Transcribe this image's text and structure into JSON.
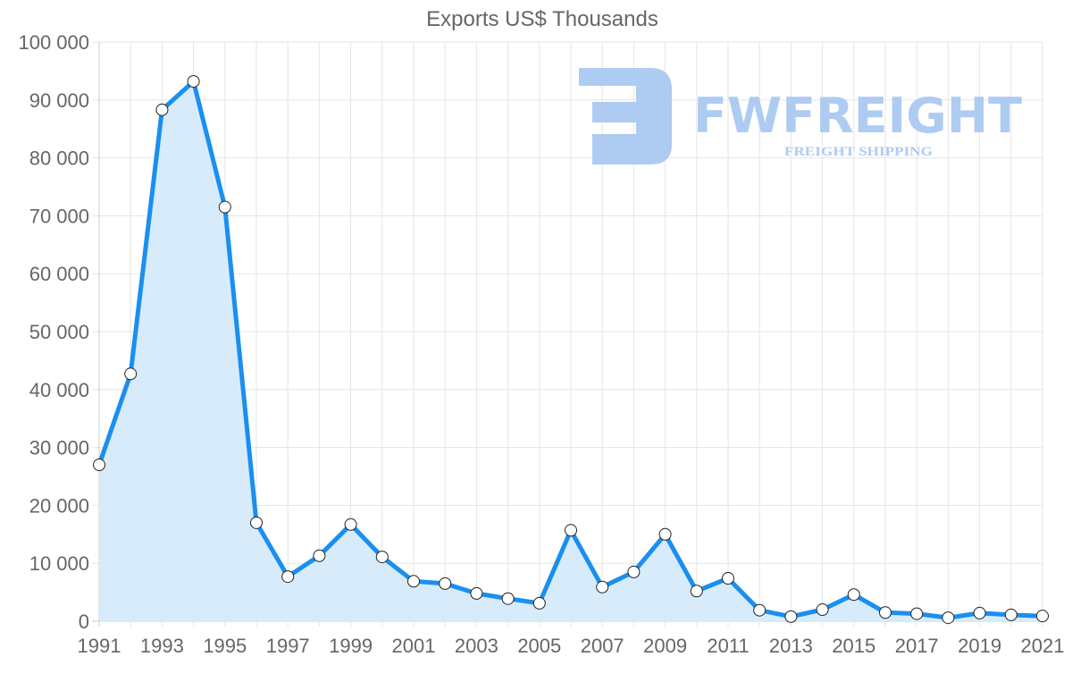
{
  "chart_data": {
    "type": "area",
    "title": "Exports US$ Thousands",
    "xlabel": "",
    "ylabel": "",
    "ylim": [
      0,
      100000
    ],
    "grid": true,
    "legend": null,
    "y_ticks": [
      "0",
      "10 000",
      "20 000",
      "30 000",
      "40 000",
      "50 000",
      "60 000",
      "70 000",
      "80 000",
      "90 000",
      "100 000"
    ],
    "x_tick_labels": [
      "1991",
      "1993",
      "1995",
      "1997",
      "1999",
      "2001",
      "2003",
      "2005",
      "2007",
      "2009",
      "2011",
      "2013",
      "2015",
      "2017",
      "2019",
      "2021"
    ],
    "categories": [
      "1991",
      "1992",
      "1993",
      "1994",
      "1995",
      "1996",
      "1997",
      "1998",
      "1999",
      "2000",
      "2001",
      "2002",
      "2003",
      "2004",
      "2005",
      "2006",
      "2007",
      "2008",
      "2009",
      "2010",
      "2011",
      "2012",
      "2013",
      "2014",
      "2015",
      "2016",
      "2017",
      "2018",
      "2019",
      "2020",
      "2021"
    ],
    "series": [
      {
        "name": "Exports US$ Thousands",
        "values": [
          27000,
          42700,
          88300,
          93200,
          71500,
          17000,
          7700,
          11300,
          16700,
          11100,
          6900,
          6500,
          4800,
          3900,
          3100,
          15700,
          5900,
          8500,
          15000,
          5200,
          7400,
          1900,
          800,
          2000,
          4600,
          1500,
          1300,
          600,
          1400,
          1100,
          900
        ]
      }
    ],
    "colors": {
      "line": "#1a8ff0",
      "fill": "#d7ebfb",
      "grid": "#e5e5e5",
      "text": "#666666",
      "watermark": "#aecbf2"
    }
  },
  "watermark": {
    "brand": "FWFREIGHT",
    "tagline": "FREIGHT SHIPPING"
  }
}
